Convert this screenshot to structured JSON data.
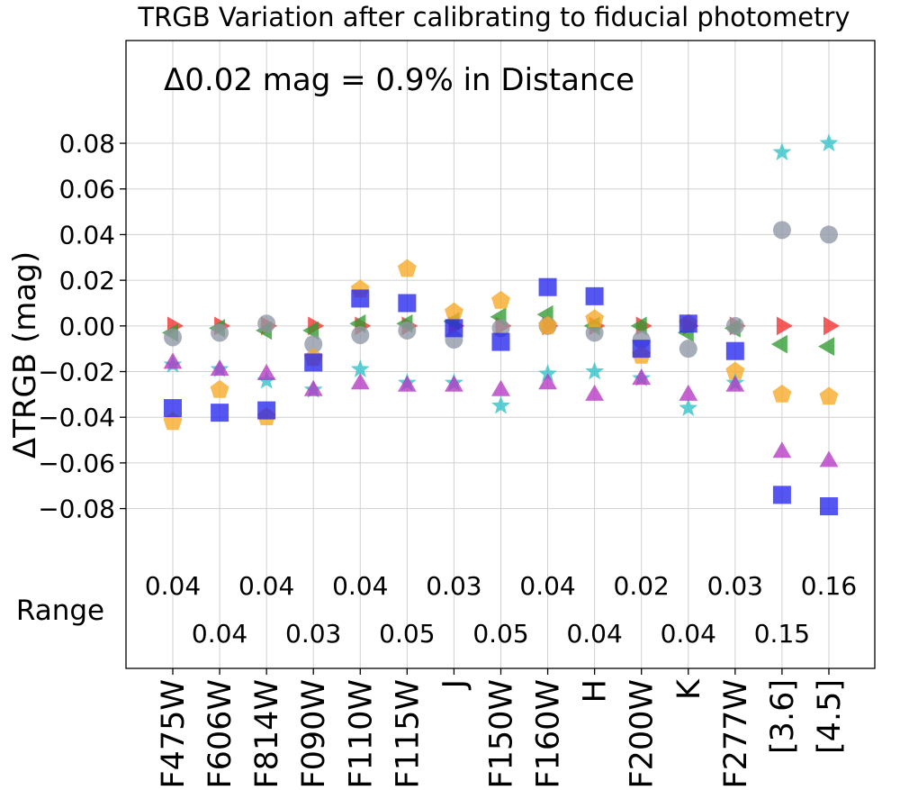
{
  "chart_data": {
    "type": "scatter",
    "title": "TRGB Variation after calibrating to fiducial photometry",
    "annotation": "Δ0.02 mag = 0.9% in Distance",
    "ylabel": "ΔTRGB (mag)",
    "xlabel": "",
    "ylim": [
      -0.15,
      0.125
    ],
    "yticks": [
      0.08,
      0.06,
      0.04,
      0.02,
      0.0,
      -0.02,
      -0.04,
      -0.06,
      -0.08
    ],
    "ytick_labels": [
      "0.08",
      "0.06",
      "0.04",
      "0.02",
      "0.00",
      "−0.02",
      "−0.04",
      "−0.06",
      "−0.08"
    ],
    "grid": true,
    "categories": [
      "F475W",
      "F606W",
      "F814W",
      "F090W",
      "F110W",
      "F115W",
      "J",
      "F150W",
      "F160W",
      "H",
      "F200W",
      "K",
      "F277W",
      "[3.6]",
      "[4.5]"
    ],
    "range_label": "Range",
    "range_values": [
      "0.04",
      "0.04",
      "0.04",
      "0.03",
      "0.04",
      "0.05",
      "0.03",
      "0.05",
      "0.04",
      "0.04",
      "0.02",
      "0.04",
      "0.03",
      "0.15",
      "0.16"
    ],
    "series": [
      {
        "marker": "triangle-right",
        "color": "#f23030",
        "values": [
          0.0,
          0.0,
          0.0,
          0.0,
          0.0,
          0.0,
          0.0,
          0.0,
          0.0,
          0.0,
          0.0,
          0.0,
          0.0,
          0.0,
          0.0
        ]
      },
      {
        "marker": "triangle-left",
        "color": "#2f9a2f",
        "values": [
          -0.003,
          -0.001,
          -0.002,
          -0.002,
          0.001,
          0.001,
          0.002,
          0.004,
          0.005,
          0.0,
          0.0,
          -0.003,
          -0.001,
          -0.008,
          -0.009
        ]
      },
      {
        "marker": "circle",
        "color": "#8f97a5",
        "values": [
          -0.005,
          -0.003,
          0.001,
          -0.008,
          -0.004,
          -0.002,
          -0.006,
          -0.001,
          0.0,
          -0.003,
          -0.006,
          -0.01,
          0.0,
          0.042,
          0.04
        ]
      },
      {
        "marker": "pentagon",
        "color": "#f7a823",
        "values": [
          -0.042,
          -0.028,
          -0.04,
          -0.014,
          0.016,
          0.025,
          0.006,
          0.011,
          0.0,
          0.003,
          -0.013,
          0.001,
          -0.02,
          -0.03,
          -0.031
        ]
      },
      {
        "marker": "square",
        "color": "#2525ee",
        "values": [
          -0.036,
          -0.038,
          -0.037,
          -0.016,
          0.012,
          0.01,
          -0.001,
          -0.007,
          0.017,
          0.013,
          -0.01,
          0.001,
          -0.011,
          -0.074,
          -0.079
        ]
      },
      {
        "marker": "star",
        "color": "#2ec2c9",
        "values": [
          -0.017,
          -0.019,
          -0.024,
          -0.028,
          -0.019,
          -0.025,
          -0.025,
          -0.035,
          -0.021,
          -0.02,
          -0.023,
          -0.036,
          -0.025,
          0.076,
          0.08
        ]
      },
      {
        "marker": "triangle-up",
        "color": "#b537c4",
        "values": [
          -0.016,
          -0.019,
          -0.021,
          -0.028,
          -0.025,
          -0.026,
          -0.026,
          -0.028,
          -0.025,
          -0.03,
          -0.023,
          -0.03,
          -0.026,
          -0.055,
          -0.059
        ]
      }
    ]
  }
}
